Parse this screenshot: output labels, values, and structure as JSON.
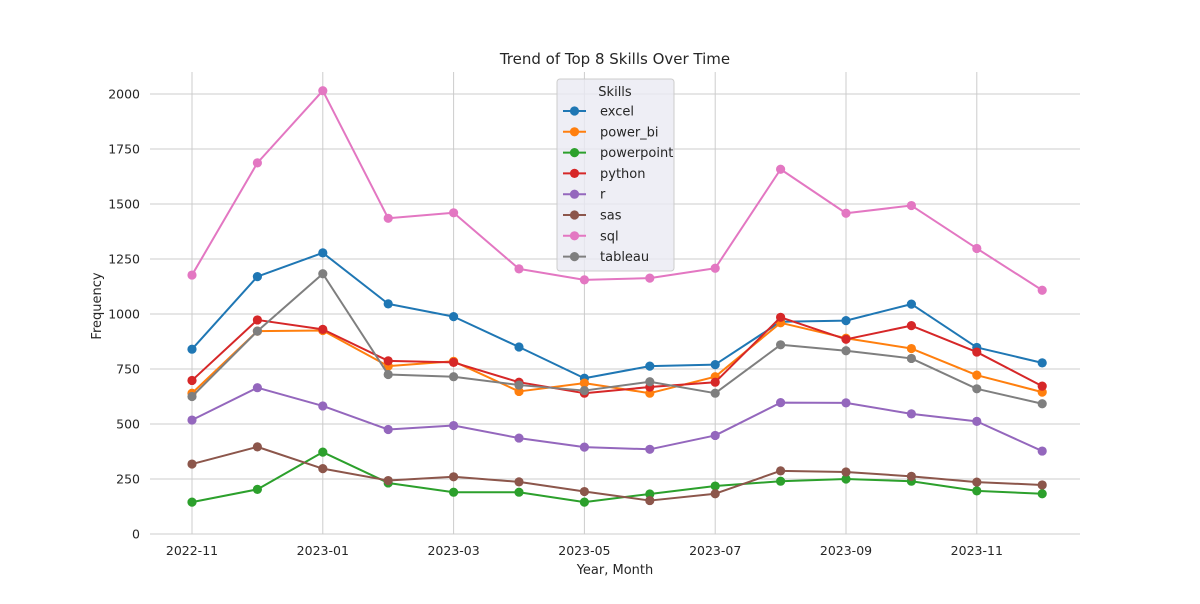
{
  "chart_data": {
    "type": "line",
    "title": "Trend of Top 8 Skills Over Time",
    "xlabel": "Year, Month",
    "ylabel": "Frequency",
    "ylim": [
      0,
      2100
    ],
    "y_ticks": [
      0,
      250,
      500,
      750,
      1000,
      1250,
      1500,
      1750,
      2000
    ],
    "x": [
      "2022-11",
      "2022-12",
      "2023-01",
      "2023-02",
      "2023-03",
      "2023-04",
      "2023-05",
      "2023-06",
      "2023-07",
      "2023-08",
      "2023-09",
      "2023-10",
      "2023-11",
      "2023-12"
    ],
    "x_tick_labels": [
      "2022-11",
      "2023-01",
      "2023-03",
      "2023-05",
      "2023-07",
      "2023-09",
      "2023-11"
    ],
    "grid": true,
    "legend": {
      "title": "Skills",
      "placement": "top-center"
    },
    "series": [
      {
        "name": "excel",
        "color": "#1f77b4",
        "values": [
          840,
          1170,
          1278,
          1046,
          988,
          850,
          708,
          763,
          770,
          965,
          970,
          1045,
          848,
          778
        ]
      },
      {
        "name": "power_bi",
        "color": "#ff7f0e",
        "values": [
          640,
          922,
          925,
          763,
          785,
          648,
          686,
          640,
          715,
          960,
          890,
          843,
          722,
          645
        ]
      },
      {
        "name": "powerpoint",
        "color": "#2ca02c",
        "values": [
          145,
          203,
          372,
          232,
          190,
          190,
          145,
          182,
          218,
          240,
          250,
          240,
          196,
          183
        ]
      },
      {
        "name": "python",
        "color": "#d62728",
        "values": [
          698,
          973,
          930,
          787,
          780,
          690,
          640,
          668,
          690,
          985,
          885,
          947,
          827,
          672
        ]
      },
      {
        "name": "r",
        "color": "#9467bd",
        "values": [
          518,
          665,
          582,
          475,
          493,
          436,
          395,
          385,
          448,
          597,
          596,
          546,
          512,
          377
        ]
      },
      {
        "name": "sas",
        "color": "#8c564b",
        "values": [
          318,
          396,
          297,
          243,
          260,
          237,
          193,
          152,
          183,
          287,
          282,
          262,
          236,
          223
        ]
      },
      {
        "name": "sql",
        "color": "#e377c2",
        "values": [
          1177,
          1687,
          2015,
          1435,
          1460,
          1205,
          1155,
          1163,
          1208,
          1658,
          1458,
          1493,
          1298,
          1108
        ]
      },
      {
        "name": "tableau",
        "color": "#7f7f7f",
        "values": [
          625,
          922,
          1183,
          725,
          715,
          677,
          652,
          692,
          640,
          860,
          833,
          798,
          660,
          592
        ]
      }
    ]
  }
}
